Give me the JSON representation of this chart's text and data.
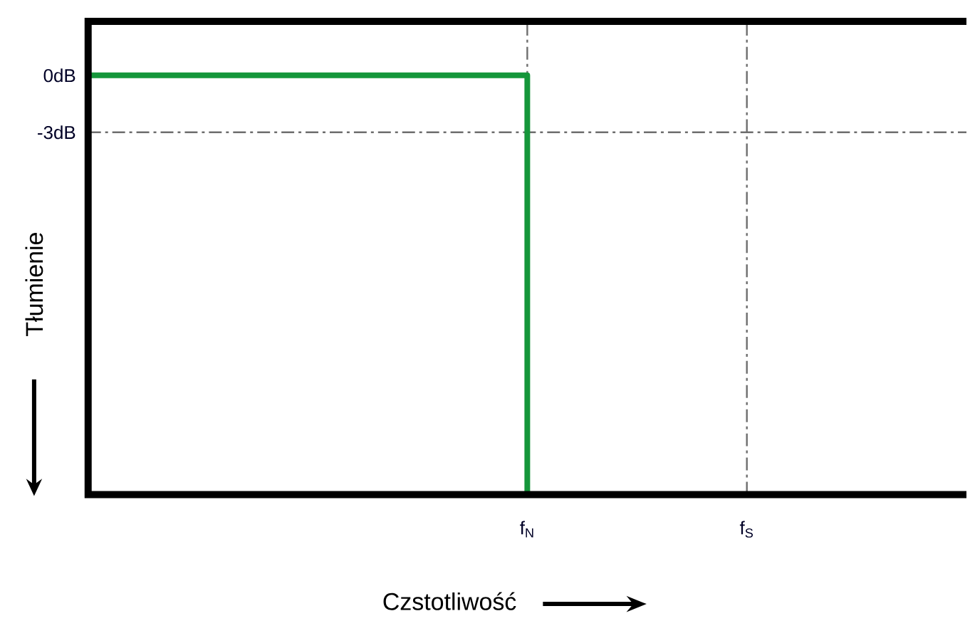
{
  "chart_data": {
    "type": "step",
    "xlabel": "Czstotliwość",
    "ylabel": "Tłumienie",
    "categories": [
      null,
      null,
      "f$_{N}$",
      "f$_{S}$",
      null
    ],
    "values": [
      0,
      0,
      0,
      -22.1,
      null
    ],
    "color": "#15963a",
    "ylim": [
      -22.1,
      2.85
    ],
    "yticks": [
      {
        "value": 0,
        "label": "0dB"
      },
      {
        "value": -3,
        "label": "-3dB"
      }
    ],
    "ref_lines": [
      {
        "axis": "y",
        "value": -3,
        "color": "#6e6e6e",
        "line_style": "dashdot"
      },
      {
        "axis": "x",
        "value": "f$_{N}$",
        "color": "#6e6e6e",
        "line_style": "dashdot"
      },
      {
        "axis": "x",
        "value": "f$_{S}$",
        "color": "#6e6e6e",
        "line_style": "dashdot"
      }
    ]
  }
}
